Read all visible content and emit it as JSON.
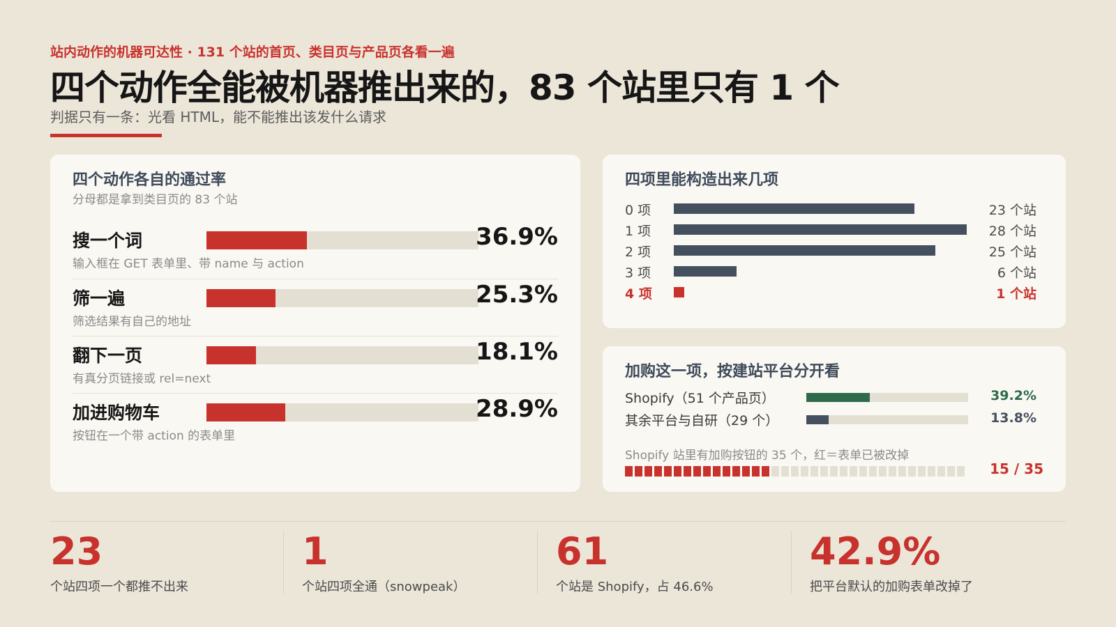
{
  "header": {
    "kicker": "站内动作的机器可达性 · 131 个站的首页、类目页与产品页各看一遍",
    "title": "四个动作全能被机器推出来的，83 个站里只有 1 个",
    "subtitle": "判据只有一条：光看 HTML，能不能推出该发什么请求"
  },
  "colors": {
    "accent_red": "#c8322d",
    "slate": "#45505f",
    "green": "#2e6b4c",
    "track": "#e4dfd3"
  },
  "chart_data": [
    {
      "type": "bar",
      "title": "四个动作各自的通过率",
      "subtitle": "分母都是拿到类目页的 83 个站",
      "categories": [
        "搜一个词",
        "筛一遍",
        "翻下一页",
        "加进购物车"
      ],
      "notes": [
        "输入框在 GET 表单里、带 name 与 action",
        "筛选结果有自己的地址",
        "有真分页链接或 rel=next",
        "按钮在一个带 action 的表单里"
      ],
      "values": [
        36.9,
        25.3,
        18.1,
        28.9
      ],
      "labels": [
        "36.9%",
        "25.3%",
        "18.1%",
        "28.9%"
      ],
      "unit": "%",
      "xlim": [
        0,
        100
      ]
    },
    {
      "type": "bar",
      "title": "四项里能构造出来几项",
      "categories": [
        "0 项",
        "1 项",
        "2 项",
        "3 项",
        "4 项"
      ],
      "values": [
        23,
        28,
        25,
        6,
        1
      ],
      "labels": [
        "23 个站",
        "28 个站",
        "25 个站",
        "6 个站",
        "1 个站"
      ],
      "highlight_index": 4
    },
    {
      "type": "bar",
      "title": "加购这一项，按建站平台分开看",
      "categories": [
        "Shopify（51 个产品页）",
        "其余平台与自研（29 个）"
      ],
      "values": [
        39.2,
        13.8
      ],
      "labels": [
        "39.2%",
        "13.8%"
      ],
      "series_colors": [
        "#2e6b4c",
        "#45505f"
      ],
      "xlim": [
        0,
        100
      ]
    },
    {
      "type": "waffle",
      "title": "Shopify 站里有加购按钮的 35 个，红＝表单已被改掉",
      "total": 35,
      "highlighted": 15,
      "label": "15 / 35"
    }
  ],
  "stats": [
    {
      "value": "23",
      "label": "个站四项一个都推不出来"
    },
    {
      "value": "1",
      "label": "个站四项全通（snowpeak）"
    },
    {
      "value": "61",
      "label": "个站是 Shopify，占 46.6%"
    },
    {
      "value": "42.9%",
      "label": "把平台默认的加购表单改掉了"
    }
  ]
}
